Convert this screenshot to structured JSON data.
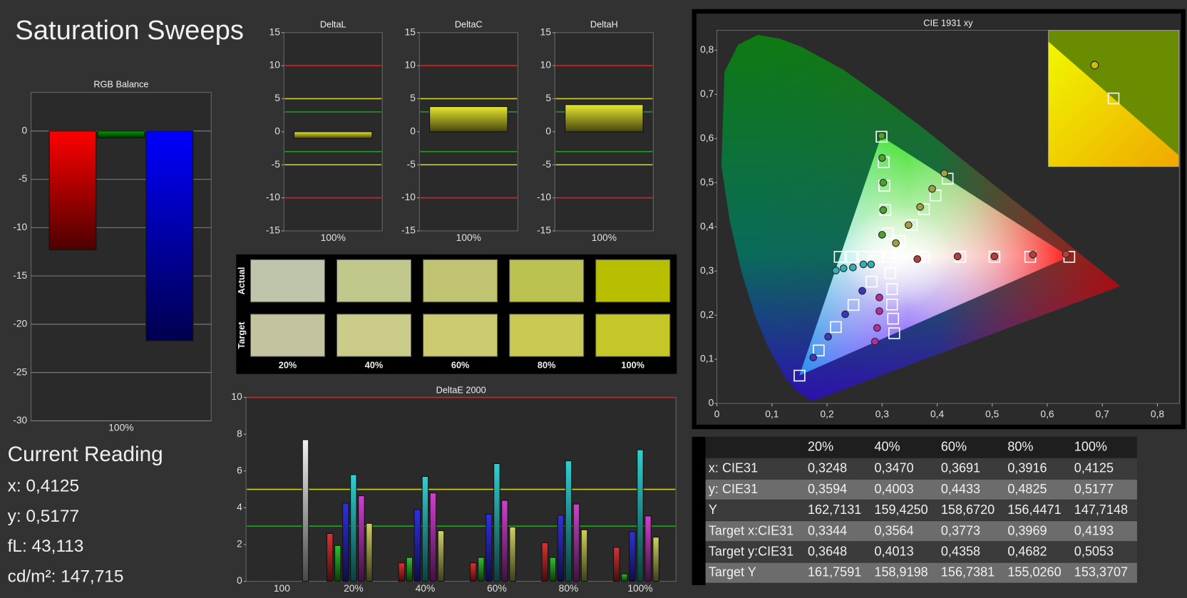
{
  "title": "Saturation Sweeps",
  "current_reading": {
    "title": "Current Reading",
    "lines": [
      "x: 0,4125",
      "y: 0,5177",
      "fL: 43,113",
      "cd/m²: 147,715"
    ]
  },
  "swatches": {
    "row_labels": [
      "Actual",
      "Target"
    ],
    "columns": [
      "20%",
      "40%",
      "60%",
      "80%",
      "100%"
    ],
    "actual_colors": [
      "#bfc5aa",
      "#c2c78c",
      "#c0c472",
      "#bcc24f",
      "#b7bf00"
    ],
    "target_colors": [
      "#c3c3a0",
      "#cbcb8a",
      "#cccb72",
      "#c9c953",
      "#c5c628"
    ]
  },
  "table": {
    "columns": [
      "20%",
      "40%",
      "60%",
      "80%",
      "100%"
    ],
    "rows": [
      {
        "label": "x: CIE31",
        "cells": [
          "0,3248",
          "0,3470",
          "0,3691",
          "0,3916",
          "0,4125"
        ]
      },
      {
        "label": "y: CIE31",
        "cells": [
          "0,3594",
          "0,4003",
          "0,4433",
          "0,4825",
          "0,5177"
        ]
      },
      {
        "label": "Y",
        "cells": [
          "162,7131",
          "159,4250",
          "158,6720",
          "156,4471",
          "147,7148"
        ]
      },
      {
        "label": "Target x:CIE31",
        "cells": [
          "0,3344",
          "0,3564",
          "0,3773",
          "0,3969",
          "0,4193"
        ]
      },
      {
        "label": "Target y:CIE31",
        "cells": [
          "0,3648",
          "0,4013",
          "0,4358",
          "0,4682",
          "0,5053"
        ]
      },
      {
        "label": "Target Y",
        "cells": [
          "161,7591",
          "158,9198",
          "156,7381",
          "155,0260",
          "153,3707"
        ]
      }
    ]
  },
  "chart_data": [
    {
      "type": "bar",
      "title": "RGB Balance",
      "categories": [
        "100%"
      ],
      "series": [
        {
          "color": "#ff0000",
          "values": [
            -12.3
          ]
        },
        {
          "color": "#00a000",
          "values": [
            -0.7
          ]
        },
        {
          "color": "#0000ff",
          "values": [
            -21.7
          ]
        }
      ],
      "ylim": [
        -30,
        4
      ],
      "yticks": [
        -30,
        -25,
        -20,
        -15,
        -10,
        -5,
        0
      ],
      "grid": true
    },
    {
      "type": "bar",
      "title": "DeltaL",
      "categories": [
        "100%"
      ],
      "values": [
        -1.0
      ],
      "color": "#e8e830",
      "ylim": [
        -15,
        15
      ],
      "yticks": [
        -15,
        -10,
        -5,
        0,
        5,
        10,
        15
      ],
      "grid": false,
      "reference_lines": [
        {
          "value": 10,
          "color": "#e02020"
        },
        {
          "value": -10,
          "color": "#e02020"
        },
        {
          "value": 5,
          "color": "#d0d020"
        },
        {
          "value": -5,
          "color": "#d0d020"
        },
        {
          "value": 3,
          "color": "#20a020"
        },
        {
          "value": -3,
          "color": "#20a020"
        }
      ]
    },
    {
      "type": "bar",
      "title": "DeltaC",
      "categories": [
        "100%"
      ],
      "values": [
        3.8
      ],
      "color": "#e8e830",
      "ylim": [
        -15,
        15
      ],
      "yticks": [
        -15,
        -10,
        -5,
        0,
        5,
        10,
        15
      ],
      "grid": false,
      "reference_lines": [
        {
          "value": 10,
          "color": "#e02020"
        },
        {
          "value": -10,
          "color": "#e02020"
        },
        {
          "value": 5,
          "color": "#d0d020"
        },
        {
          "value": -5,
          "color": "#d0d020"
        },
        {
          "value": 3,
          "color": "#20a020"
        },
        {
          "value": -3,
          "color": "#20a020"
        }
      ]
    },
    {
      "type": "bar",
      "title": "DeltaH",
      "categories": [
        "100%"
      ],
      "values": [
        4.1
      ],
      "color": "#e8e830",
      "ylim": [
        -15,
        15
      ],
      "yticks": [
        -15,
        -10,
        -5,
        0,
        5,
        10,
        15
      ],
      "grid": false,
      "reference_lines": [
        {
          "value": 10,
          "color": "#e02020"
        },
        {
          "value": -10,
          "color": "#e02020"
        },
        {
          "value": 5,
          "color": "#d0d020"
        },
        {
          "value": -5,
          "color": "#d0d020"
        },
        {
          "value": 3,
          "color": "#20a020"
        },
        {
          "value": -3,
          "color": "#20a020"
        }
      ]
    },
    {
      "type": "bar",
      "title": "DeltaE 2000",
      "categories": [
        "100",
        "20%",
        "40%",
        "60%",
        "80%",
        "100%"
      ],
      "series": [
        {
          "color": "#e03030",
          "values": [
            null,
            2.6,
            1.0,
            1.0,
            2.1,
            1.85
          ]
        },
        {
          "color": "#30c030",
          "values": [
            null,
            1.95,
            1.3,
            1.3,
            1.3,
            0.4
          ]
        },
        {
          "color": "#3030e0",
          "values": [
            null,
            4.25,
            3.9,
            3.65,
            3.6,
            2.7
          ]
        },
        {
          "color": "#30d0d0",
          "values": [
            null,
            5.8,
            5.7,
            6.4,
            6.55,
            7.15
          ]
        },
        {
          "color": "#d040d0",
          "values": [
            null,
            4.65,
            4.8,
            4.4,
            4.2,
            3.55
          ]
        },
        {
          "color": "#d0d060",
          "values": [
            null,
            3.15,
            2.75,
            2.95,
            2.8,
            2.4
          ]
        },
        {
          "color": "#f0f0f0",
          "values": [
            7.7,
            null,
            null,
            null,
            null,
            null
          ]
        }
      ],
      "ylim": [
        0,
        10
      ],
      "yticks": [
        0,
        2,
        4,
        6,
        8,
        10
      ],
      "grid": false,
      "reference_lines": [
        {
          "value": 10,
          "color": "#e02020"
        },
        {
          "value": 5,
          "color": "#d0d020"
        },
        {
          "value": 3,
          "color": "#20a020"
        }
      ]
    },
    {
      "type": "scatter",
      "title": "CIE 1931 xy",
      "xlim": [
        0,
        0.84
      ],
      "ylim": [
        0,
        0.845
      ],
      "xticks": [
        0,
        {
          "value": 0.1,
          "label": "0,1"
        },
        {
          "value": 0.2,
          "label": "0,2"
        },
        {
          "value": 0.3,
          "label": "0,3"
        },
        {
          "value": 0.4,
          "label": "0,4"
        },
        {
          "value": 0.5,
          "label": "0,5"
        },
        {
          "value": 0.6,
          "label": "0,6"
        },
        {
          "value": 0.7,
          "label": "0,7"
        },
        {
          "value": 0.8,
          "label": "0,8"
        }
      ],
      "yticks": [
        0,
        {
          "value": 0.1,
          "label": "0,1"
        },
        {
          "value": 0.2,
          "label": "0,2"
        },
        {
          "value": 0.3,
          "label": "0,3"
        },
        {
          "value": 0.4,
          "label": "0,4"
        },
        {
          "value": 0.5,
          "label": "0,5"
        },
        {
          "value": 0.6,
          "label": "0,6"
        },
        {
          "value": 0.7,
          "label": "0,7"
        },
        {
          "value": 0.8,
          "label": "0,8"
        }
      ],
      "series": [
        {
          "marker": "square",
          "color": "#ffffff",
          "x": [
            0.313,
            0.376,
            0.442,
            0.504,
            0.569,
            0.64,
            0.299,
            0.303,
            0.304,
            0.306,
            0.31,
            0.281,
            0.248,
            0.216,
            0.185,
            0.15,
            0.291,
            0.267,
            0.245,
            0.223,
            0.315,
            0.318,
            0.318,
            0.32,
            0.322,
            0.332,
            0.354,
            0.376,
            0.397,
            0.419
          ],
          "y": [
            0.332,
            0.332,
            0.332,
            0.332,
            0.332,
            0.332,
            0.604,
            0.546,
            0.493,
            0.438,
            0.385,
            0.276,
            0.223,
            0.173,
            0.12,
            0.063,
            0.332,
            0.332,
            0.332,
            0.332,
            0.295,
            0.259,
            0.224,
            0.192,
            0.159,
            0.368,
            0.404,
            0.44,
            0.471,
            0.509
          ]
        },
        {
          "marker": "circle",
          "color": "#b04040",
          "x": [
            0.364,
            0.437,
            0.504,
            0.574,
            0.634
          ],
          "y": [
            0.327,
            0.333,
            0.333,
            0.337,
            0.338
          ]
        },
        {
          "marker": "circle",
          "color": "#50a030",
          "x": [
            0.299,
            0.3,
            0.302,
            0.302,
            0.3
          ],
          "y": [
            0.606,
            0.556,
            0.5,
            0.438,
            0.382
          ]
        },
        {
          "marker": "circle",
          "color": "#3838b8",
          "x": [
            0.264,
            0.233,
            0.202,
            0.175
          ],
          "y": [
            0.255,
            0.202,
            0.151,
            0.104
          ]
        },
        {
          "marker": "circle",
          "color": "#30b0b0",
          "x": [
            0.216,
            0.23,
            0.247,
            0.266,
            0.28
          ],
          "y": [
            0.301,
            0.306,
            0.308,
            0.315,
            0.315
          ]
        },
        {
          "marker": "circle",
          "color": "#b030a0",
          "x": [
            0.295,
            0.295,
            0.291,
            0.287
          ],
          "y": [
            0.24,
            0.209,
            0.171,
            0.14
          ]
        },
        {
          "marker": "circle",
          "color": "#a0a040",
          "x": [
            0.325,
            0.348,
            0.369,
            0.391,
            0.413
          ],
          "y": [
            0.363,
            0.404,
            0.445,
            0.486,
            0.521
          ]
        }
      ]
    }
  ]
}
